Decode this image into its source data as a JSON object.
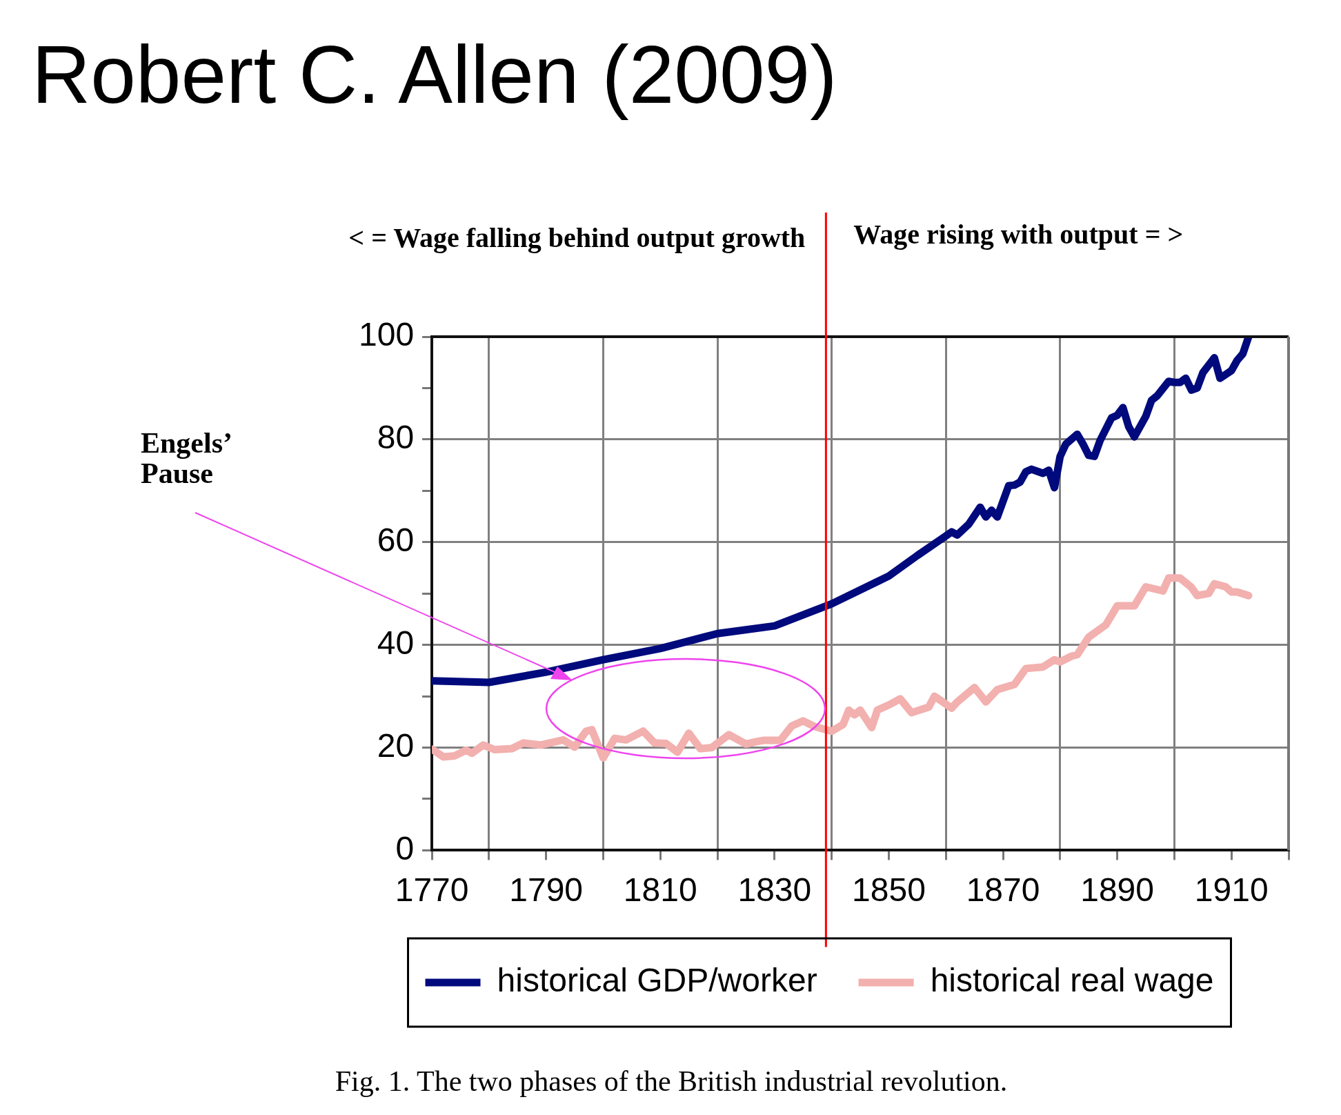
{
  "chart_data": {
    "type": "line",
    "title": "Robert C. Allen (2009)",
    "annotations": [
      "< = Wage falling behind output growth",
      "Wage rising with output = >",
      "Engels’ Pause",
      "Fig. 1. The two phases of the British industrial revolution."
    ],
    "xlim": [
      1770,
      1920
    ],
    "xticks": [
      1770,
      {
        "value": 1780,
        "label": null
      },
      1790,
      {
        "value": 1800,
        "label": null
      },
      1810,
      {
        "value": 1820,
        "label": null
      },
      1830,
      {
        "value": 1840,
        "label": null
      },
      1850,
      {
        "value": 1860,
        "label": null
      },
      1870,
      {
        "value": 1880,
        "label": null
      },
      1890,
      {
        "value": 1900,
        "label": null
      },
      1910,
      {
        "value": 1920,
        "label": null
      }
    ],
    "ylim": [
      0,
      100
    ],
    "yticks": [
      0,
      {
        "value": 10,
        "label": null
      },
      20,
      {
        "value": 30,
        "label": null
      },
      40,
      {
        "value": 50,
        "label": null
      },
      60,
      {
        "value": 70,
        "label": null
      },
      80,
      {
        "value": 90,
        "label": null
      },
      100
    ],
    "grid": true,
    "legend": "bottom",
    "marker": "none",
    "line_style": "solid",
    "ref_lines": [
      {
        "axis": "x",
        "value": 1839,
        "color": "#ff0000"
      }
    ],
    "series": [
      {
        "name": "historical GDP/worker",
        "color": "#000a7c",
        "x": [
          1770,
          1780,
          1790,
          1800,
          1810,
          1820,
          1830,
          1840,
          1850,
          1855,
          1860,
          1861,
          1862,
          1864,
          1866,
          1867,
          1868,
          1869,
          1871,
          1872,
          1873,
          1874,
          1875,
          1877,
          1878,
          1879,
          1880,
          1881,
          1883,
          1884,
          1885,
          1886,
          1887,
          1889,
          1890,
          1891,
          1892,
          1893,
          1895,
          1896,
          1897,
          1899,
          1900,
          1901,
          1902,
          1903,
          1904,
          1905,
          1907,
          1908,
          1910,
          1911,
          1912,
          1913
        ],
        "values": [
          33,
          32.7,
          34.7,
          37.1,
          39.3,
          42.2,
          43.7,
          48,
          53.4,
          57.4,
          61.2,
          62,
          61.4,
          63.5,
          66.8,
          64.9,
          66.2,
          64.9,
          71,
          71.1,
          71.7,
          73.7,
          74.2,
          73.4,
          74,
          70.6,
          76.7,
          79.1,
          81,
          79.1,
          76.9,
          76.7,
          79.8,
          84.2,
          84.7,
          86.2,
          82.5,
          80.5,
          84.5,
          87.6,
          88.5,
          91.3,
          91.1,
          91.1,
          91.9,
          89.6,
          90,
          93,
          95.9,
          91.9,
          93.4,
          95.4,
          96.7,
          100
        ]
      },
      {
        "name": "historical real wage",
        "color": "#f2b0ae",
        "x": [
          1770,
          1772,
          1774,
          1776,
          1777,
          1779,
          1781,
          1784,
          1786,
          1789,
          1793,
          1795,
          1797,
          1798,
          1800,
          1802,
          1804,
          1807,
          1809,
          1811,
          1813,
          1815,
          1817,
          1819,
          1822,
          1825,
          1827,
          1828,
          1831,
          1833,
          1835,
          1837,
          1839,
          1840,
          1842,
          1843,
          1844,
          1845,
          1847,
          1848,
          1850,
          1852,
          1854,
          1857,
          1858,
          1861,
          1862,
          1865,
          1867,
          1869,
          1872,
          1874,
          1877,
          1879,
          1880,
          1882,
          1883,
          1885,
          1888,
          1890,
          1892,
          1893,
          1895,
          1898,
          1899,
          1901,
          1903,
          1904,
          1906,
          1907,
          1909,
          1910,
          1911,
          1913
        ],
        "values": [
          19.7,
          18.2,
          18.4,
          19.5,
          18.9,
          20.5,
          19.6,
          19.8,
          20.9,
          20.5,
          21.5,
          20.1,
          23.2,
          23.5,
          18,
          21.8,
          21.5,
          23.2,
          20.9,
          20.8,
          19.1,
          22.8,
          19.8,
          20,
          22.5,
          20.7,
          21.2,
          21.4,
          21.4,
          24.2,
          25.2,
          24.1,
          23.5,
          23.2,
          24.5,
          27.3,
          26.4,
          27.3,
          23.9,
          27.3,
          28.3,
          29.5,
          26.8,
          27.9,
          30,
          27.7,
          28.9,
          31.7,
          28.9,
          31.3,
          32.3,
          35.4,
          35.7,
          37.1,
          36.7,
          37.8,
          38.1,
          41.5,
          43.9,
          47.6,
          47.6,
          47.6,
          51.3,
          50.5,
          53,
          53,
          51.2,
          49.6,
          50,
          51.9,
          51.3,
          50.3,
          50.3,
          49.6
        ]
      }
    ]
  }
}
